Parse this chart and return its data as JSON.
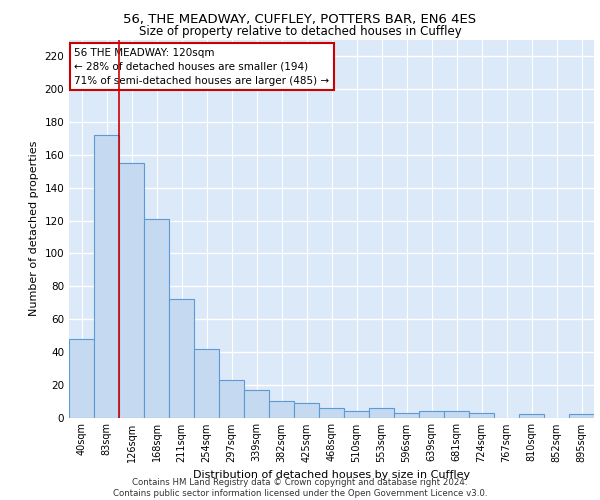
{
  "title1": "56, THE MEADWAY, CUFFLEY, POTTERS BAR, EN6 4ES",
  "title2": "Size of property relative to detached houses in Cuffley",
  "xlabel": "Distribution of detached houses by size in Cuffley",
  "ylabel": "Number of detached properties",
  "categories": [
    "40sqm",
    "83sqm",
    "126sqm",
    "168sqm",
    "211sqm",
    "254sqm",
    "297sqm",
    "339sqm",
    "382sqm",
    "425sqm",
    "468sqm",
    "510sqm",
    "553sqm",
    "596sqm",
    "639sqm",
    "681sqm",
    "724sqm",
    "767sqm",
    "810sqm",
    "852sqm",
    "895sqm"
  ],
  "values": [
    48,
    172,
    155,
    121,
    72,
    42,
    23,
    17,
    10,
    9,
    6,
    4,
    6,
    3,
    4,
    4,
    3,
    0,
    2,
    0,
    2
  ],
  "bar_color": "#c5d9f0",
  "bar_edge_color": "#5b9bd5",
  "background_color": "#dce9f8",
  "grid_color": "#ffffff",
  "red_line_x": 1.5,
  "annotation_text": "56 THE MEADWAY: 120sqm\n← 28% of detached houses are smaller (194)\n71% of semi-detached houses are larger (485) →",
  "annotation_box_color": "#ffffff",
  "annotation_box_edge": "#cc0000",
  "footer_line1": "Contains HM Land Registry data © Crown copyright and database right 2024.",
  "footer_line2": "Contains public sector information licensed under the Open Government Licence v3.0.",
  "ylim": [
    0,
    230
  ],
  "yticks": [
    0,
    20,
    40,
    60,
    80,
    100,
    120,
    140,
    160,
    180,
    200,
    220
  ]
}
